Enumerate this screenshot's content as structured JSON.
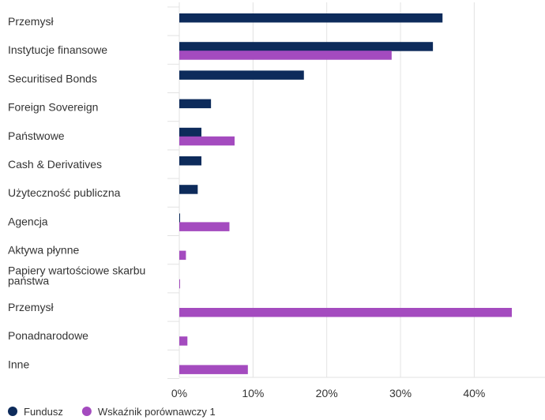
{
  "chart_data": {
    "type": "bar",
    "orientation": "horizontal",
    "categories": [
      "Przemysł",
      "Instytucje finansowe",
      "Securitised Bonds",
      "Foreign Sovereign",
      "Państwowe",
      "Cash & Derivatives",
      "Użyteczność publiczna",
      "Agencja",
      "Aktywa płynne",
      "Papiery wartościowe skarbu państwa",
      "Przemysł",
      "Ponadnarodowe",
      "Inne"
    ],
    "series": [
      {
        "name": "Fundusz",
        "color": "#0d2b5b",
        "values": [
          35.7,
          34.4,
          16.9,
          4.3,
          3.0,
          3.0,
          2.5,
          0.1,
          null,
          null,
          null,
          null,
          null
        ]
      },
      {
        "name": "Wskaźnik porównawczy 1",
        "color": "#a44bbf",
        "values": [
          null,
          28.8,
          null,
          null,
          7.5,
          null,
          null,
          6.8,
          0.9,
          0.1,
          45.1,
          1.1,
          9.3
        ]
      }
    ],
    "xticks": [
      "0%",
      "10%",
      "20%",
      "30%",
      "40%"
    ],
    "xlim": [
      0,
      49.6
    ],
    "grid": true,
    "legend": "bottom-left",
    "title": "",
    "xlabel": "",
    "ylabel": ""
  }
}
